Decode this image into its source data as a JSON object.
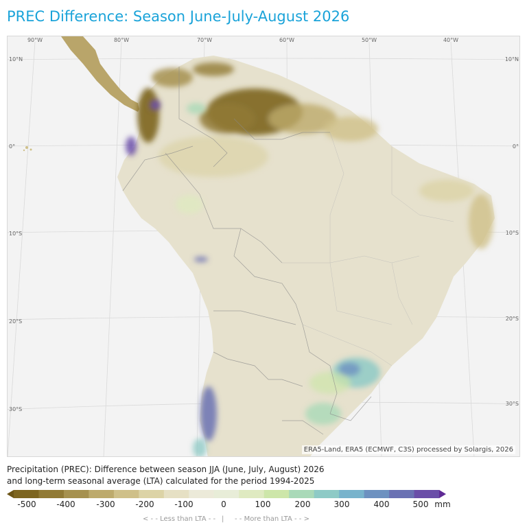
{
  "title": "PREC Difference: Season June-July-August 2026",
  "map": {
    "longitude_labels": [
      "90°W",
      "80°W",
      "70°W",
      "60°W",
      "50°W",
      "40°W"
    ],
    "latitude_labels_left": [
      "10°N",
      "0°",
      "10°S",
      "20°S",
      "30°S"
    ],
    "latitude_labels_right": [
      "10°N",
      "0°",
      "10°S",
      "20°S",
      "30°S"
    ],
    "attribution": "ERA5-Land, ERA5 (ECMWF, C3S) processed by Solargis, 2026",
    "regions": {
      "drier_than_lta": [
        "northern Colombia",
        "Venezuela",
        "Guianas",
        "northeast Brazil coast"
      ],
      "wetter_than_lta": [
        "southern Brazil",
        "Uruguay",
        "central Chile Andes",
        "western Colombia/Ecuador Andes"
      ]
    }
  },
  "description": {
    "line1": "Precipitation (PREC): Difference between season JJA (June, July, August) 2026",
    "line2": "and long-term seasonal average (LTA) calculated for the period 1994-2025"
  },
  "legend": {
    "tick_labels": [
      "-500",
      "-400",
      "-300",
      "-200",
      "-100",
      "0",
      "100",
      "200",
      "300",
      "400",
      "500"
    ],
    "unit": "mm",
    "less_hint": "< - -  Less than LTA  - -",
    "separator": "|",
    "more_hint": "- -  More than LTA  - - >",
    "colors": [
      "#6b5416",
      "#7d6520",
      "#917a35",
      "#a6914f",
      "#bdaa6c",
      "#cfc089",
      "#dcd3a6",
      "#e6e0c4",
      "#ecead9",
      "#e8edd8",
      "#dfeac1",
      "#cde6a9",
      "#a9d9b8",
      "#8ecac6",
      "#78b3cc",
      "#6d91c0",
      "#6a71b3",
      "#6a4ea8",
      "#5f2a95"
    ]
  },
  "colors": {
    "title": "#1aa3d9",
    "land_base": "#e6e1cd",
    "ocean": "#f3f3f3"
  }
}
